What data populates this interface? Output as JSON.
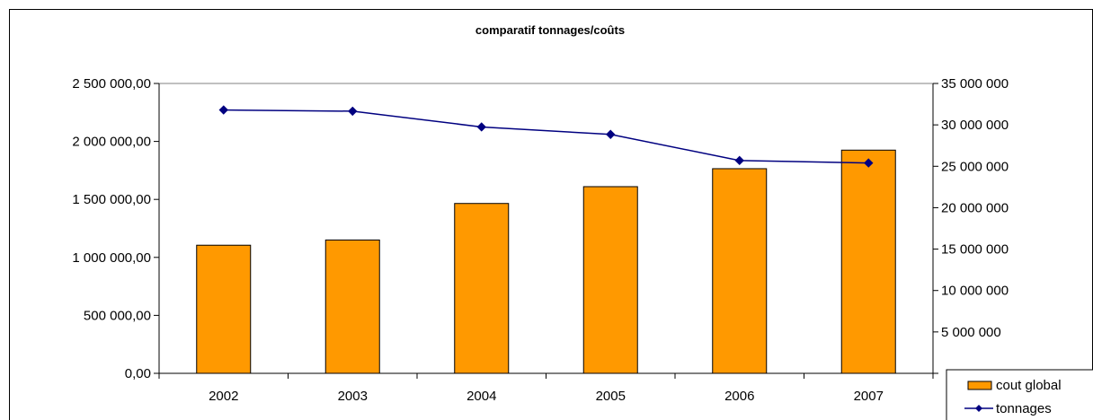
{
  "chart_data": {
    "type": "bar",
    "title": "comparatif tonnages/coûts",
    "categories": [
      "2002",
      "2003",
      "2004",
      "2005",
      "2006",
      "2007"
    ],
    "series": [
      {
        "name": "cout global",
        "type": "bar",
        "axis": "left",
        "color": "#FF9900",
        "values": [
          1105000,
          1150000,
          1465000,
          1610000,
          1765000,
          1925000
        ]
      },
      {
        "name": "tonnages",
        "type": "line",
        "axis": "right",
        "color": "#000080",
        "marker": "diamond",
        "values": [
          31800000,
          31650000,
          29750000,
          28850000,
          25700000,
          25400000
        ]
      }
    ],
    "y_left": {
      "ylim": [
        0,
        2500000
      ],
      "ticks": [
        "0,00",
        "500 000,00",
        "1 000 000,00",
        "1 500 000,00",
        "2 000 000,00",
        "2 500 000,00"
      ]
    },
    "y_right": {
      "ylim": [
        0,
        35000000
      ],
      "ticks": [
        "",
        "5 000 000",
        "10 000 000",
        "15 000 000",
        "20 000 000",
        "25 000 000",
        "30 000 000",
        "35 000 000"
      ]
    },
    "xlabel": "",
    "ylabel": "",
    "grid": false,
    "legend": {
      "position": "bottom-right",
      "entries": [
        "cout global",
        "tonnages"
      ]
    }
  }
}
